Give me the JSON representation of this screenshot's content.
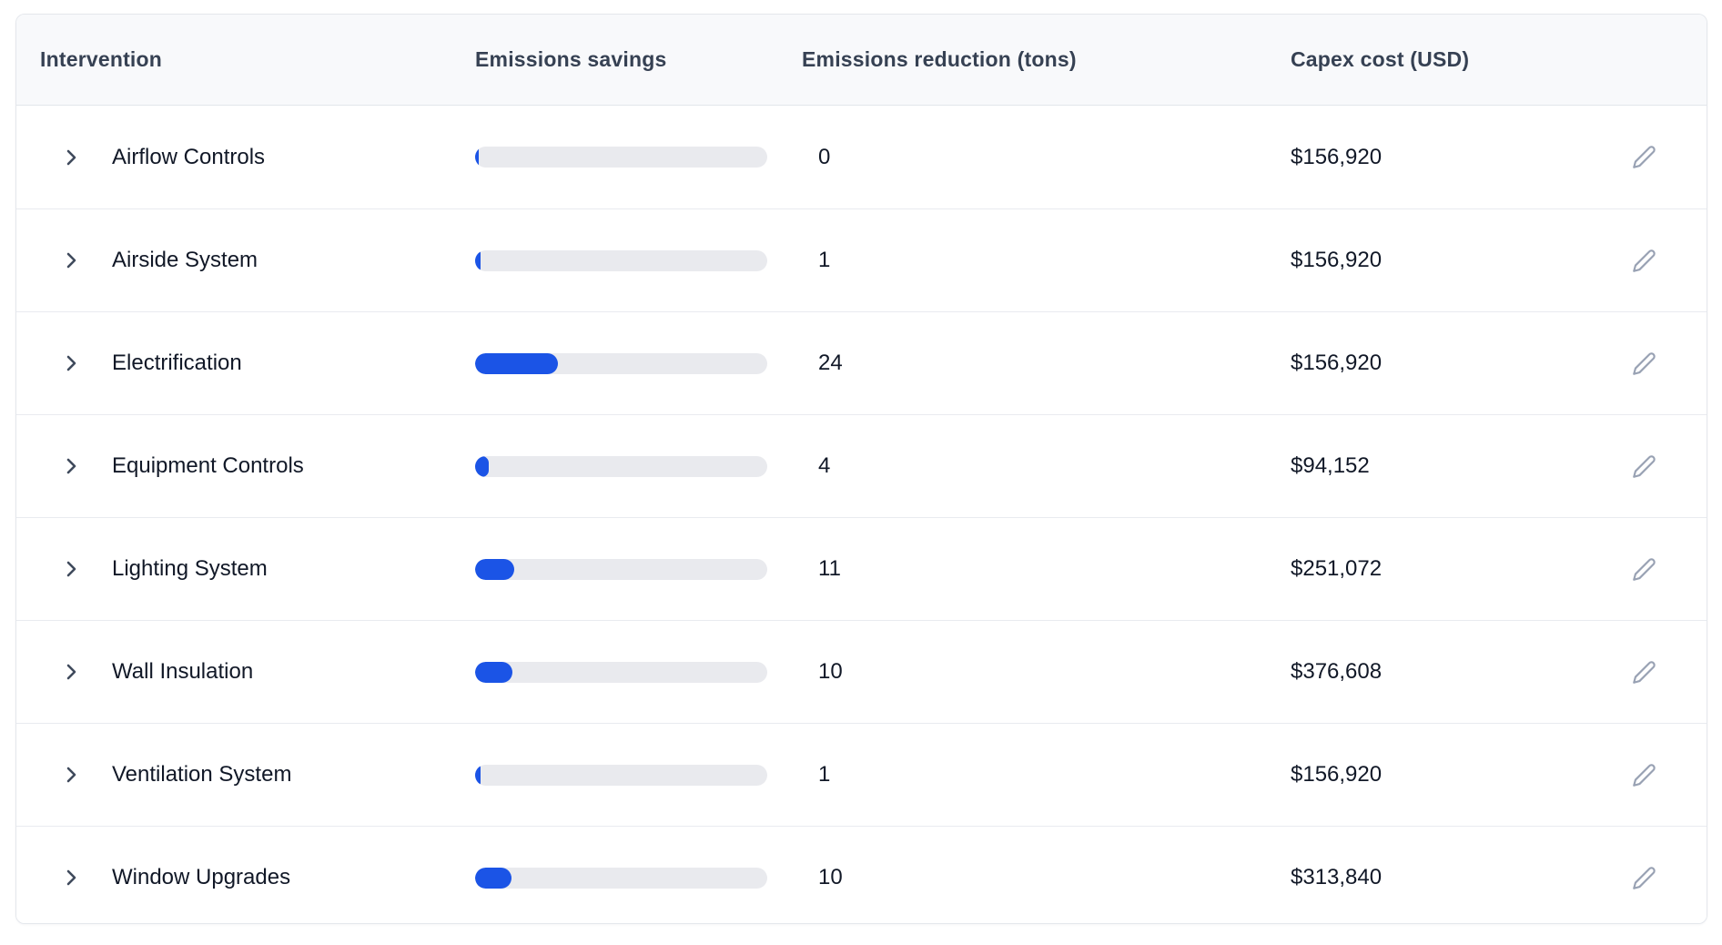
{
  "table": {
    "columns": {
      "intervention": "Intervention",
      "emissions_savings": "Emissions savings",
      "emissions_reduction": "Emissions reduction (tons)",
      "capex_cost": "Capex cost (USD)"
    },
    "rows": [
      {
        "intervention": "Airflow Controls",
        "savings_bar_percent": 1.2,
        "emissions_reduction_tons": "0",
        "capex_cost": "$156,920"
      },
      {
        "intervention": "Airside System",
        "savings_bar_percent": 2.0,
        "emissions_reduction_tons": "1",
        "capex_cost": "$156,920"
      },
      {
        "intervention": "Electrification",
        "savings_bar_percent": 28.4,
        "emissions_reduction_tons": "24",
        "capex_cost": "$156,920"
      },
      {
        "intervention": "Equipment Controls",
        "savings_bar_percent": 4.7,
        "emissions_reduction_tons": "4",
        "capex_cost": "$94,152"
      },
      {
        "intervention": "Lighting System",
        "savings_bar_percent": 13.4,
        "emissions_reduction_tons": "11",
        "capex_cost": "$251,072"
      },
      {
        "intervention": "Wall Insulation",
        "savings_bar_percent": 12.8,
        "emissions_reduction_tons": "10",
        "capex_cost": "$376,608"
      },
      {
        "intervention": "Ventilation System",
        "savings_bar_percent": 2.0,
        "emissions_reduction_tons": "1",
        "capex_cost": "$156,920"
      },
      {
        "intervention": "Window Upgrades",
        "savings_bar_percent": 12.5,
        "emissions_reduction_tons": "10",
        "capex_cost": "$313,840"
      }
    ]
  },
  "icons": {
    "expand_row": "chevron-right-icon",
    "edit_row": "pencil-icon"
  },
  "colors": {
    "bar_fill": "#1b54e6",
    "bar_track": "#e9eaee",
    "header_bg": "#f8f9fb",
    "header_text": "#364153",
    "row_text": "#111827",
    "card_border": "#e4e7ec",
    "row_divider": "#e9ebf0",
    "edit_icon": "#98a1b3",
    "chevron_icon": "#3f4a5c"
  }
}
